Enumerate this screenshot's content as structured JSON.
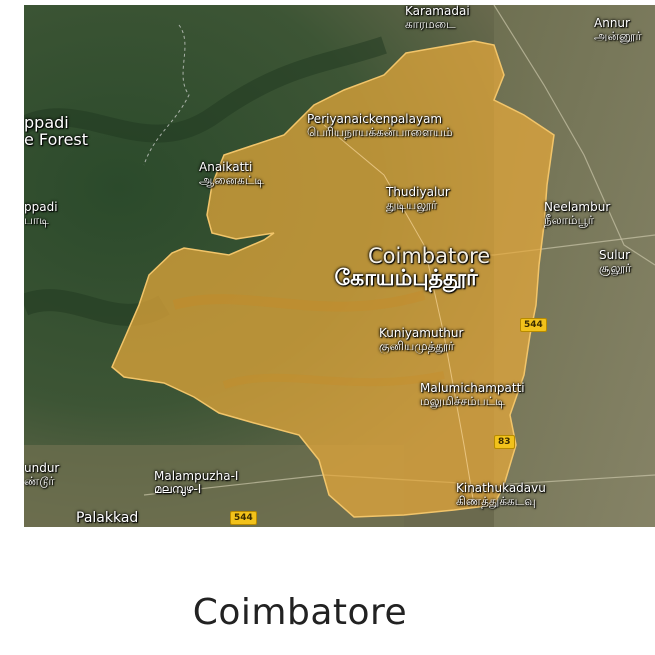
{
  "map": {
    "region_color": "#e8a93a",
    "terrain_colors": {
      "forest": "#2e4a2a",
      "plain": "#7a7a55",
      "urban": "#8a8872"
    },
    "places": [
      {
        "id": "karamadai",
        "en": "Karamadai",
        "ta": "காரமடை"
      },
      {
        "id": "annur",
        "en": "Annur",
        "ta": "அன்னூர்"
      },
      {
        "id": "attappadi-forest",
        "en": "ppadi",
        "ta": "e Forest"
      },
      {
        "id": "periyanaickenpalayam",
        "en": "Periyanaickenpalayam",
        "ta": "பெரியநாயக்கன்பாளையம்"
      },
      {
        "id": "anaikatti",
        "en": "Anaikatti",
        "ta": "ஆனைகட்டி"
      },
      {
        "id": "thudiyalur",
        "en": "Thudiyalur",
        "ta": "துடியலூர்"
      },
      {
        "id": "neelambur",
        "en": "Neelambur",
        "ta": "நீலாம்பூர்"
      },
      {
        "id": "attappadi",
        "en": "ppadi",
        "ta": "பாடி"
      },
      {
        "id": "coimbatore",
        "en": "Coimbatore",
        "ta": "கோயம்புத்தூர்",
        "major": true
      },
      {
        "id": "sulur",
        "en": "Sulur",
        "ta": "சூலூர்"
      },
      {
        "id": "kuniyamuthur",
        "en": "Kuniyamuthur",
        "ta": "குனியமுத்தூர்"
      },
      {
        "id": "malumichampatti",
        "en": "Malumichampatti",
        "ta": "மலுமிச்சம்பட்டி"
      },
      {
        "id": "undur",
        "en": "undur",
        "ta": "ண்டூர்"
      },
      {
        "id": "malampuzha",
        "en": "Malampuzha-I",
        "ta": "മലമ്പുഴ-I"
      },
      {
        "id": "kinathukadavu",
        "en": "Kinathukadavu",
        "ta": "கிணத்துக்கடவு"
      },
      {
        "id": "palakkad",
        "en": "Palakkad",
        "ta": ""
      }
    ],
    "road_shields": [
      {
        "id": "nh544-east",
        "label": "544"
      },
      {
        "id": "nh83",
        "label": "83"
      },
      {
        "id": "nh544-south",
        "label": "544"
      }
    ]
  },
  "caption": "Coimbatore"
}
